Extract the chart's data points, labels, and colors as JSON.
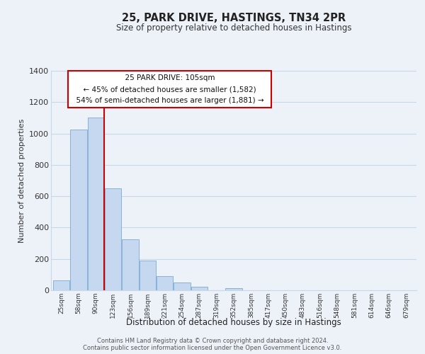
{
  "title": "25, PARK DRIVE, HASTINGS, TN34 2PR",
  "subtitle": "Size of property relative to detached houses in Hastings",
  "xlabel": "Distribution of detached houses by size in Hastings",
  "ylabel": "Number of detached properties",
  "bar_labels": [
    "25sqm",
    "58sqm",
    "90sqm",
    "123sqm",
    "156sqm",
    "189sqm",
    "221sqm",
    "254sqm",
    "287sqm",
    "319sqm",
    "352sqm",
    "385sqm",
    "417sqm",
    "450sqm",
    "483sqm",
    "516sqm",
    "548sqm",
    "581sqm",
    "614sqm",
    "646sqm",
    "679sqm"
  ],
  "bar_values": [
    65,
    1025,
    1100,
    650,
    325,
    190,
    90,
    50,
    22,
    0,
    15,
    0,
    0,
    0,
    0,
    0,
    0,
    0,
    0,
    0,
    0
  ],
  "bar_color": "#c5d8f0",
  "bar_edge_color": "#7baad4",
  "vline_color": "#cc0000",
  "annotation_title": "25 PARK DRIVE: 105sqm",
  "annotation_line1": "← 45% of detached houses are smaller (1,582)",
  "annotation_line2": "54% of semi-detached houses are larger (1,881) →",
  "box_facecolor": "#ffffff",
  "box_edgecolor": "#cc0000",
  "ylim": [
    0,
    1400
  ],
  "yticks": [
    0,
    200,
    400,
    600,
    800,
    1000,
    1200,
    1400
  ],
  "grid_color": "#c8d8e8",
  "background_color": "#edf2f9",
  "footer1": "Contains HM Land Registry data © Crown copyright and database right 2024.",
  "footer2": "Contains public sector information licensed under the Open Government Licence v3.0."
}
